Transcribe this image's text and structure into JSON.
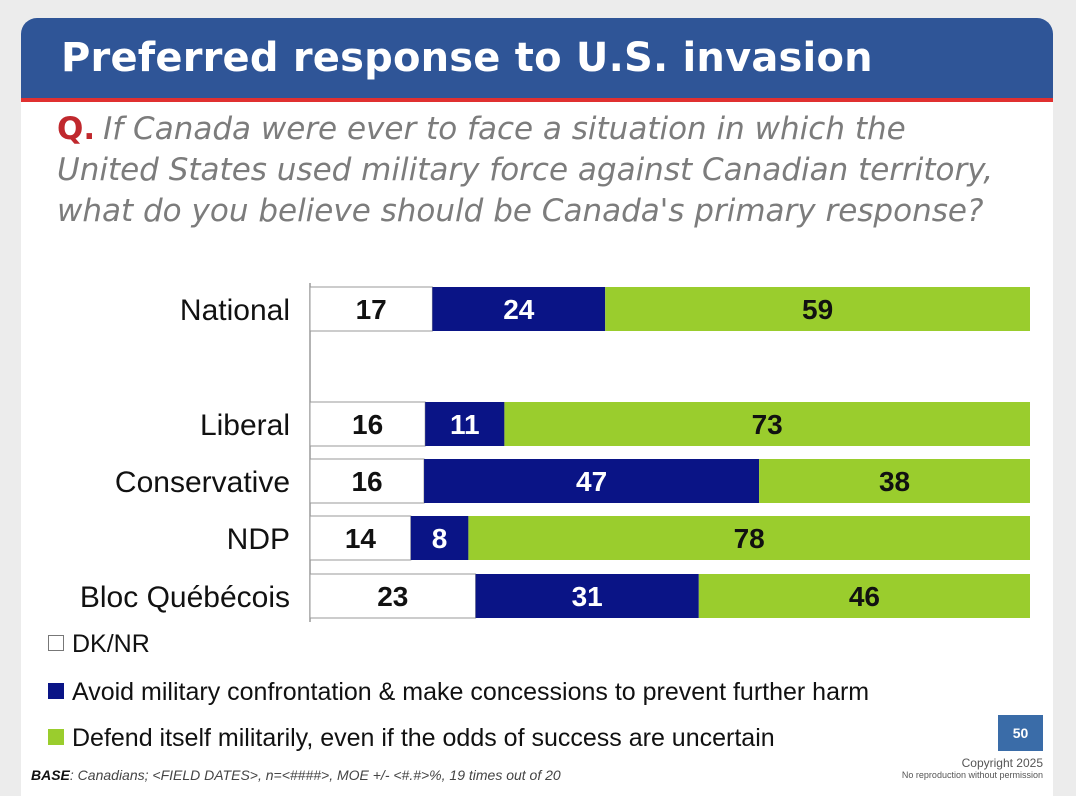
{
  "header": {
    "title": "Preferred response to U.S. invasion"
  },
  "question": {
    "label": "Q.",
    "text": "If Canada were ever to face a situation in which the United States used military force against Canadian territory, what do you believe should be Canada's primary response?"
  },
  "chart_data": {
    "type": "bar",
    "orientation": "horizontal",
    "stacked": true,
    "unit": "percent",
    "categories": [
      "National",
      "Liberal",
      "Conservative",
      "NDP",
      "Bloc Québécois"
    ],
    "series": [
      {
        "name": "DK/NR",
        "color": "#ffffff",
        "label_color": "#111111",
        "values": [
          17,
          16,
          16,
          14,
          23
        ]
      },
      {
        "name": "Avoid military confrontation & make concessions to prevent further harm",
        "color": "#0a1486",
        "label_color": "#ffffff",
        "values": [
          24,
          11,
          47,
          8,
          31
        ]
      },
      {
        "name": "Defend itself militarily, even if the odds of success are uncertain",
        "color": "#9acd2d",
        "label_color": "#111111",
        "values": [
          59,
          73,
          38,
          78,
          46
        ]
      }
    ],
    "xlim": [
      0,
      100
    ],
    "legend_position": "bottom-left",
    "grid": false
  },
  "footer": {
    "page_number": "50",
    "base_label": "BASE",
    "base_text": ": Canadians; <FIELD DATES>, n=<####>, MOE +/- <#.#>%, 19 times out of 20",
    "copyright": "Copyright 2025",
    "notice": "No reproduction without permission"
  }
}
